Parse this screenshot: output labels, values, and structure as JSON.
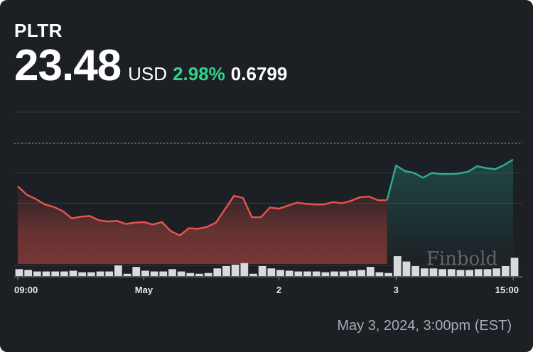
{
  "header": {
    "ticker": "PLTR",
    "price": "23.48",
    "currency": "USD",
    "change_pct": "2.98%",
    "change_abs": "0.6799"
  },
  "watermark": "Finbold",
  "timestamp": "May 3, 2024, 3:00pm (EST)",
  "colors": {
    "background": "#1c1f24",
    "down_line": "#e5534b",
    "up_line": "#2bab91",
    "positive_text": "#34d18a",
    "volume_bar": "#d8dadd"
  },
  "chart_data": {
    "type": "line",
    "ylim": [
      21.5,
      24.0
    ],
    "previous_close": 23.48,
    "x_tick_labels": [
      {
        "label": "09:00",
        "index": 0
      },
      {
        "label": "May",
        "index": 14
      },
      {
        "label": "2",
        "index": 29
      },
      {
        "label": "3",
        "index": 42
      },
      {
        "label": "15:00",
        "index": 55
      }
    ],
    "price_series": {
      "name": "",
      "values": [
        22.78,
        22.64,
        22.57,
        22.48,
        22.44,
        22.37,
        22.25,
        22.28,
        22.29,
        22.22,
        22.2,
        22.21,
        22.16,
        22.18,
        22.19,
        22.15,
        22.19,
        22.04,
        21.97,
        22.09,
        22.08,
        22.11,
        22.18,
        22.4,
        22.62,
        22.59,
        22.27,
        22.27,
        22.43,
        22.41,
        22.46,
        22.51,
        22.49,
        22.48,
        22.48,
        22.52,
        22.5,
        22.54,
        22.6,
        22.61,
        22.55,
        22.55,
        23.12,
        23.03,
        23.0,
        22.92,
        23.0,
        22.98,
        22.98,
        22.99,
        23.02,
        23.11,
        23.08,
        23.06,
        23.13,
        23.22
      ],
      "up_start_index": 41
    },
    "volume_series": {
      "name": "",
      "values": [
        9,
        8,
        6,
        6,
        6,
        6,
        7,
        5,
        5,
        6,
        6,
        14,
        3,
        12,
        7,
        6,
        6,
        9,
        6,
        4,
        3,
        4,
        10,
        13,
        15,
        17,
        3,
        13,
        10,
        8,
        7,
        6,
        6,
        6,
        5,
        6,
        6,
        7,
        8,
        12,
        5,
        4,
        26,
        19,
        13,
        10,
        10,
        9,
        9,
        8,
        8,
        9,
        9,
        10,
        13,
        24
      ]
    }
  }
}
